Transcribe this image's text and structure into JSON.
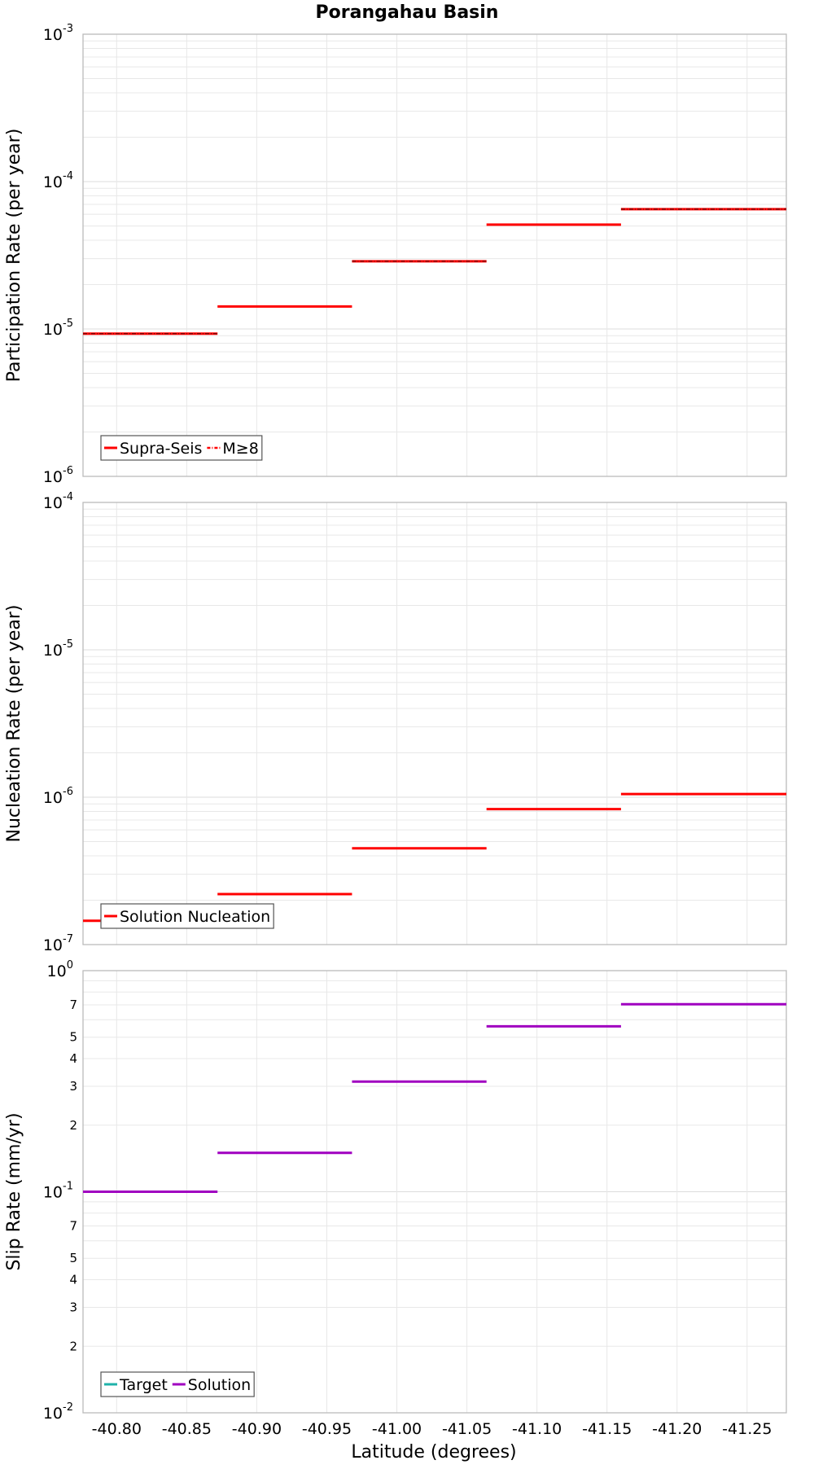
{
  "title": "Porangahau Basin",
  "x_axis": {
    "label": "Latitude (degrees)",
    "range": [
      -40.776,
      -41.278
    ],
    "ticks": [
      -40.8,
      -40.85,
      -40.9,
      -40.95,
      -41.0,
      -41.05,
      -41.1,
      -41.15,
      -41.2,
      -41.25
    ],
    "tick_labels": [
      "-40.80",
      "-40.85",
      "-40.90",
      "-40.95",
      "-41.00",
      "-41.05",
      "-41.10",
      "-41.15",
      "-41.20",
      "-41.25"
    ]
  },
  "colors": {
    "supra_seis": "#ff0000",
    "m8": "#ff0000",
    "nucleation": "#ff0000",
    "target": "#20b2aa",
    "solution": "#a000c0",
    "grid": "#e8e8e8",
    "frame": "#bbbbbb"
  },
  "chart_data": [
    {
      "type": "line",
      "scale": "log",
      "ylabel": "Participation Rate (per year)",
      "ylim": [
        1e-06,
        0.001
      ],
      "y_major_ticks": [
        {
          "value": 0.001,
          "base": "10",
          "exp": "-3"
        },
        {
          "value": 0.0001,
          "base": "10",
          "exp": "-4"
        },
        {
          "value": 1e-05,
          "base": "10",
          "exp": "-5"
        },
        {
          "value": 1e-06,
          "base": "10",
          "exp": "-6"
        }
      ],
      "y_minor_labels": [],
      "legend": {
        "position": "bottom-left",
        "entries": [
          "Supra-Seis",
          "M≥8"
        ]
      },
      "series": [
        {
          "name": "Supra-Seis",
          "color_key": "supra_seis",
          "style": "solid",
          "segments": [
            {
              "x": [
                -40.776,
                -40.872
              ],
              "y": 9.3e-06
            },
            {
              "x": [
                -40.872,
                -40.968
              ],
              "y": 1.42e-05
            },
            {
              "x": [
                -40.968,
                -41.064
              ],
              "y": 2.88e-05
            },
            {
              "x": [
                -41.064,
                -41.16
              ],
              "y": 5.1e-05
            },
            {
              "x": [
                -41.16,
                -41.278
              ],
              "y": 6.5e-05
            }
          ]
        },
        {
          "name": "M≥8",
          "color_key": "m8",
          "style": "dash-dot",
          "segments": [
            {
              "x": [
                -40.776,
                -40.872
              ],
              "y": 9.3e-06
            },
            {
              "x": [
                -40.968,
                -41.064
              ],
              "y": 2.88e-05
            },
            {
              "x": [
                -41.16,
                -41.278
              ],
              "y": 6.5e-05
            }
          ]
        }
      ]
    },
    {
      "type": "line",
      "scale": "log",
      "ylabel": "Nucleation Rate (per year)",
      "ylim": [
        1e-07,
        0.0001
      ],
      "y_major_ticks": [
        {
          "value": 0.0001,
          "base": "10",
          "exp": "-4"
        },
        {
          "value": 1e-05,
          "base": "10",
          "exp": "-5"
        },
        {
          "value": 1e-06,
          "base": "10",
          "exp": "-6"
        },
        {
          "value": 1e-07,
          "base": "10",
          "exp": "-7"
        }
      ],
      "y_minor_labels": [],
      "legend": {
        "position": "bottom-left",
        "entries": [
          "Solution Nucleation"
        ]
      },
      "series": [
        {
          "name": "Solution Nucleation",
          "color_key": "nucleation",
          "style": "solid",
          "segments": [
            {
              "x": [
                -40.776,
                -40.872
              ],
              "y": 1.45e-07
            },
            {
              "x": [
                -40.872,
                -40.968
              ],
              "y": 2.2e-07
            },
            {
              "x": [
                -40.968,
                -41.064
              ],
              "y": 4.5e-07
            },
            {
              "x": [
                -41.064,
                -41.16
              ],
              "y": 8.3e-07
            },
            {
              "x": [
                -41.16,
                -41.278
              ],
              "y": 1.05e-06
            }
          ]
        }
      ]
    },
    {
      "type": "line",
      "scale": "log",
      "ylabel": "Slip Rate (mm/yr)",
      "ylim": [
        0.01,
        1
      ],
      "y_major_ticks": [
        {
          "value": 1,
          "base": "10",
          "exp": "0"
        },
        {
          "value": 0.1,
          "base": "10",
          "exp": "-1"
        },
        {
          "value": 0.01,
          "base": "10",
          "exp": "-2"
        }
      ],
      "y_minor_labels": [
        {
          "value": 0.7,
          "label": "7"
        },
        {
          "value": 0.5,
          "label": "5"
        },
        {
          "value": 0.4,
          "label": "4"
        },
        {
          "value": 0.3,
          "label": "3"
        },
        {
          "value": 0.2,
          "label": "2"
        },
        {
          "value": 0.07,
          "label": "7"
        },
        {
          "value": 0.05,
          "label": "5"
        },
        {
          "value": 0.04,
          "label": "4"
        },
        {
          "value": 0.03,
          "label": "3"
        },
        {
          "value": 0.02,
          "label": "2"
        }
      ],
      "legend": {
        "position": "bottom-left",
        "entries": [
          "Target",
          "Solution"
        ]
      },
      "series": [
        {
          "name": "Target",
          "color_key": "target",
          "style": "solid",
          "segments": []
        },
        {
          "name": "Solution",
          "color_key": "solution",
          "style": "solid",
          "segments": [
            {
              "x": [
                -40.776,
                -40.872
              ],
              "y": 0.1
            },
            {
              "x": [
                -40.872,
                -40.968
              ],
              "y": 0.15
            },
            {
              "x": [
                -40.968,
                -41.064
              ],
              "y": 0.315
            },
            {
              "x": [
                -41.064,
                -41.16
              ],
              "y": 0.56
            },
            {
              "x": [
                -41.16,
                -41.278
              ],
              "y": 0.705
            }
          ]
        }
      ]
    }
  ]
}
